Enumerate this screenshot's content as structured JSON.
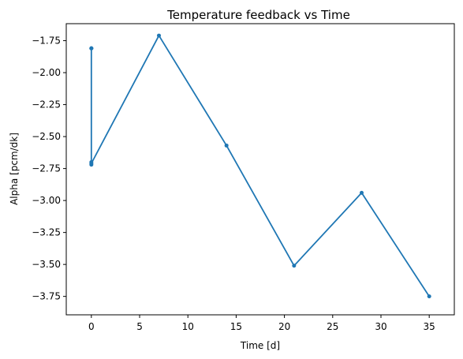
{
  "chart_data": {
    "type": "line",
    "title": "Temperature feedback vs Time",
    "xlabel": "Time [d]",
    "ylabel": "Alpha [pcm/dk]",
    "xlim": [
      -2.6,
      37.6
    ],
    "ylim": [
      -3.894,
      -1.617
    ],
    "xticks": [
      0,
      5,
      10,
      15,
      20,
      25,
      30,
      35
    ],
    "yticks": [
      -3.75,
      -3.5,
      -3.25,
      -3.0,
      -2.75,
      -2.5,
      -2.25,
      -2.0,
      -1.75
    ],
    "tick_labels_x": [
      "0",
      "5",
      "10",
      "15",
      "20",
      "25",
      "30",
      "35"
    ],
    "tick_labels_y": [
      "−3.75",
      "−3.50",
      "−3.25",
      "−3.00",
      "−2.75",
      "−2.50",
      "−2.25",
      "−2.00",
      "−1.75"
    ],
    "grid": false,
    "legend": "none",
    "series": [
      {
        "color": "#1f77b4",
        "marker": "circle",
        "x": [
          0,
          0,
          0,
          0,
          0,
          0,
          7,
          14,
          21,
          28,
          35
        ],
        "y": [
          -1.81,
          -2.72,
          -1.81,
          -2.7,
          -1.81,
          -2.71,
          -1.71,
          -2.57,
          -3.51,
          -2.94,
          -3.75
        ]
      }
    ]
  }
}
